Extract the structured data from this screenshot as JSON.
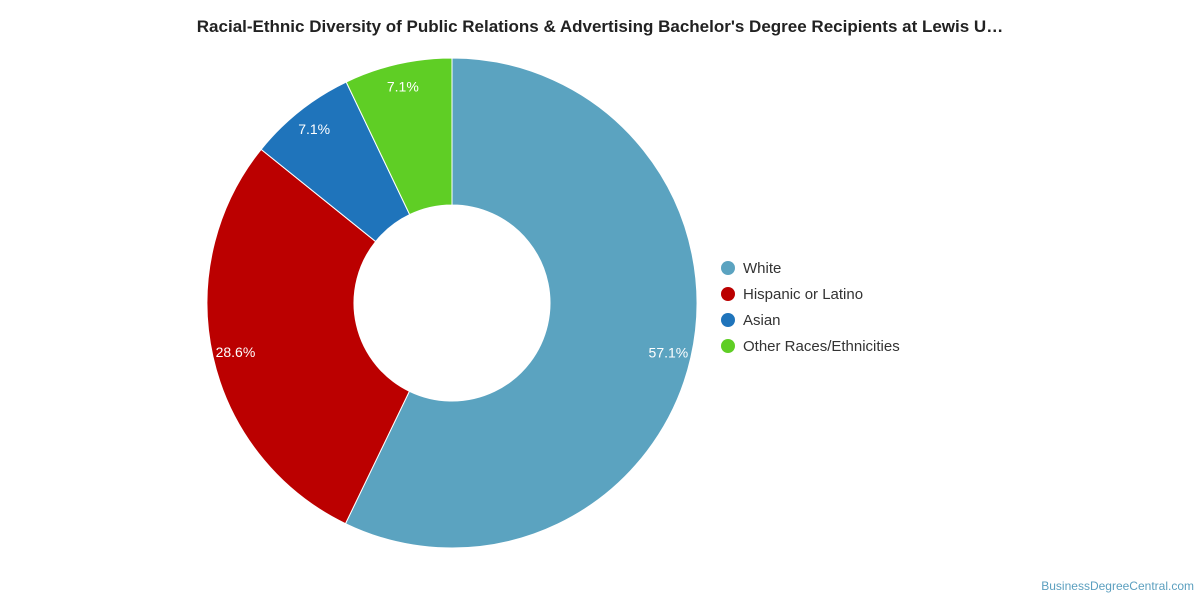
{
  "chart_data": {
    "type": "pie",
    "title": "Racial-Ethnic Diversity of Public Relations & Advertising Bachelor's Degree Recipients at Lewis U…",
    "donut": true,
    "legend_position": "right",
    "slices": [
      {
        "label": "White",
        "value": 57.1,
        "display": "57.1%",
        "color": "#5ba3c0"
      },
      {
        "label": "Hispanic or Latino",
        "value": 28.6,
        "display": "28.6%",
        "color": "#bb0000"
      },
      {
        "label": "Asian",
        "value": 7.1,
        "display": "7.1%",
        "color": "#1f74bb"
      },
      {
        "label": "Other Races/Ethnicities",
        "value": 7.1,
        "display": "7.1%",
        "color": "#5fce25"
      }
    ]
  },
  "watermark": "BusinessDegreeCentral.com"
}
